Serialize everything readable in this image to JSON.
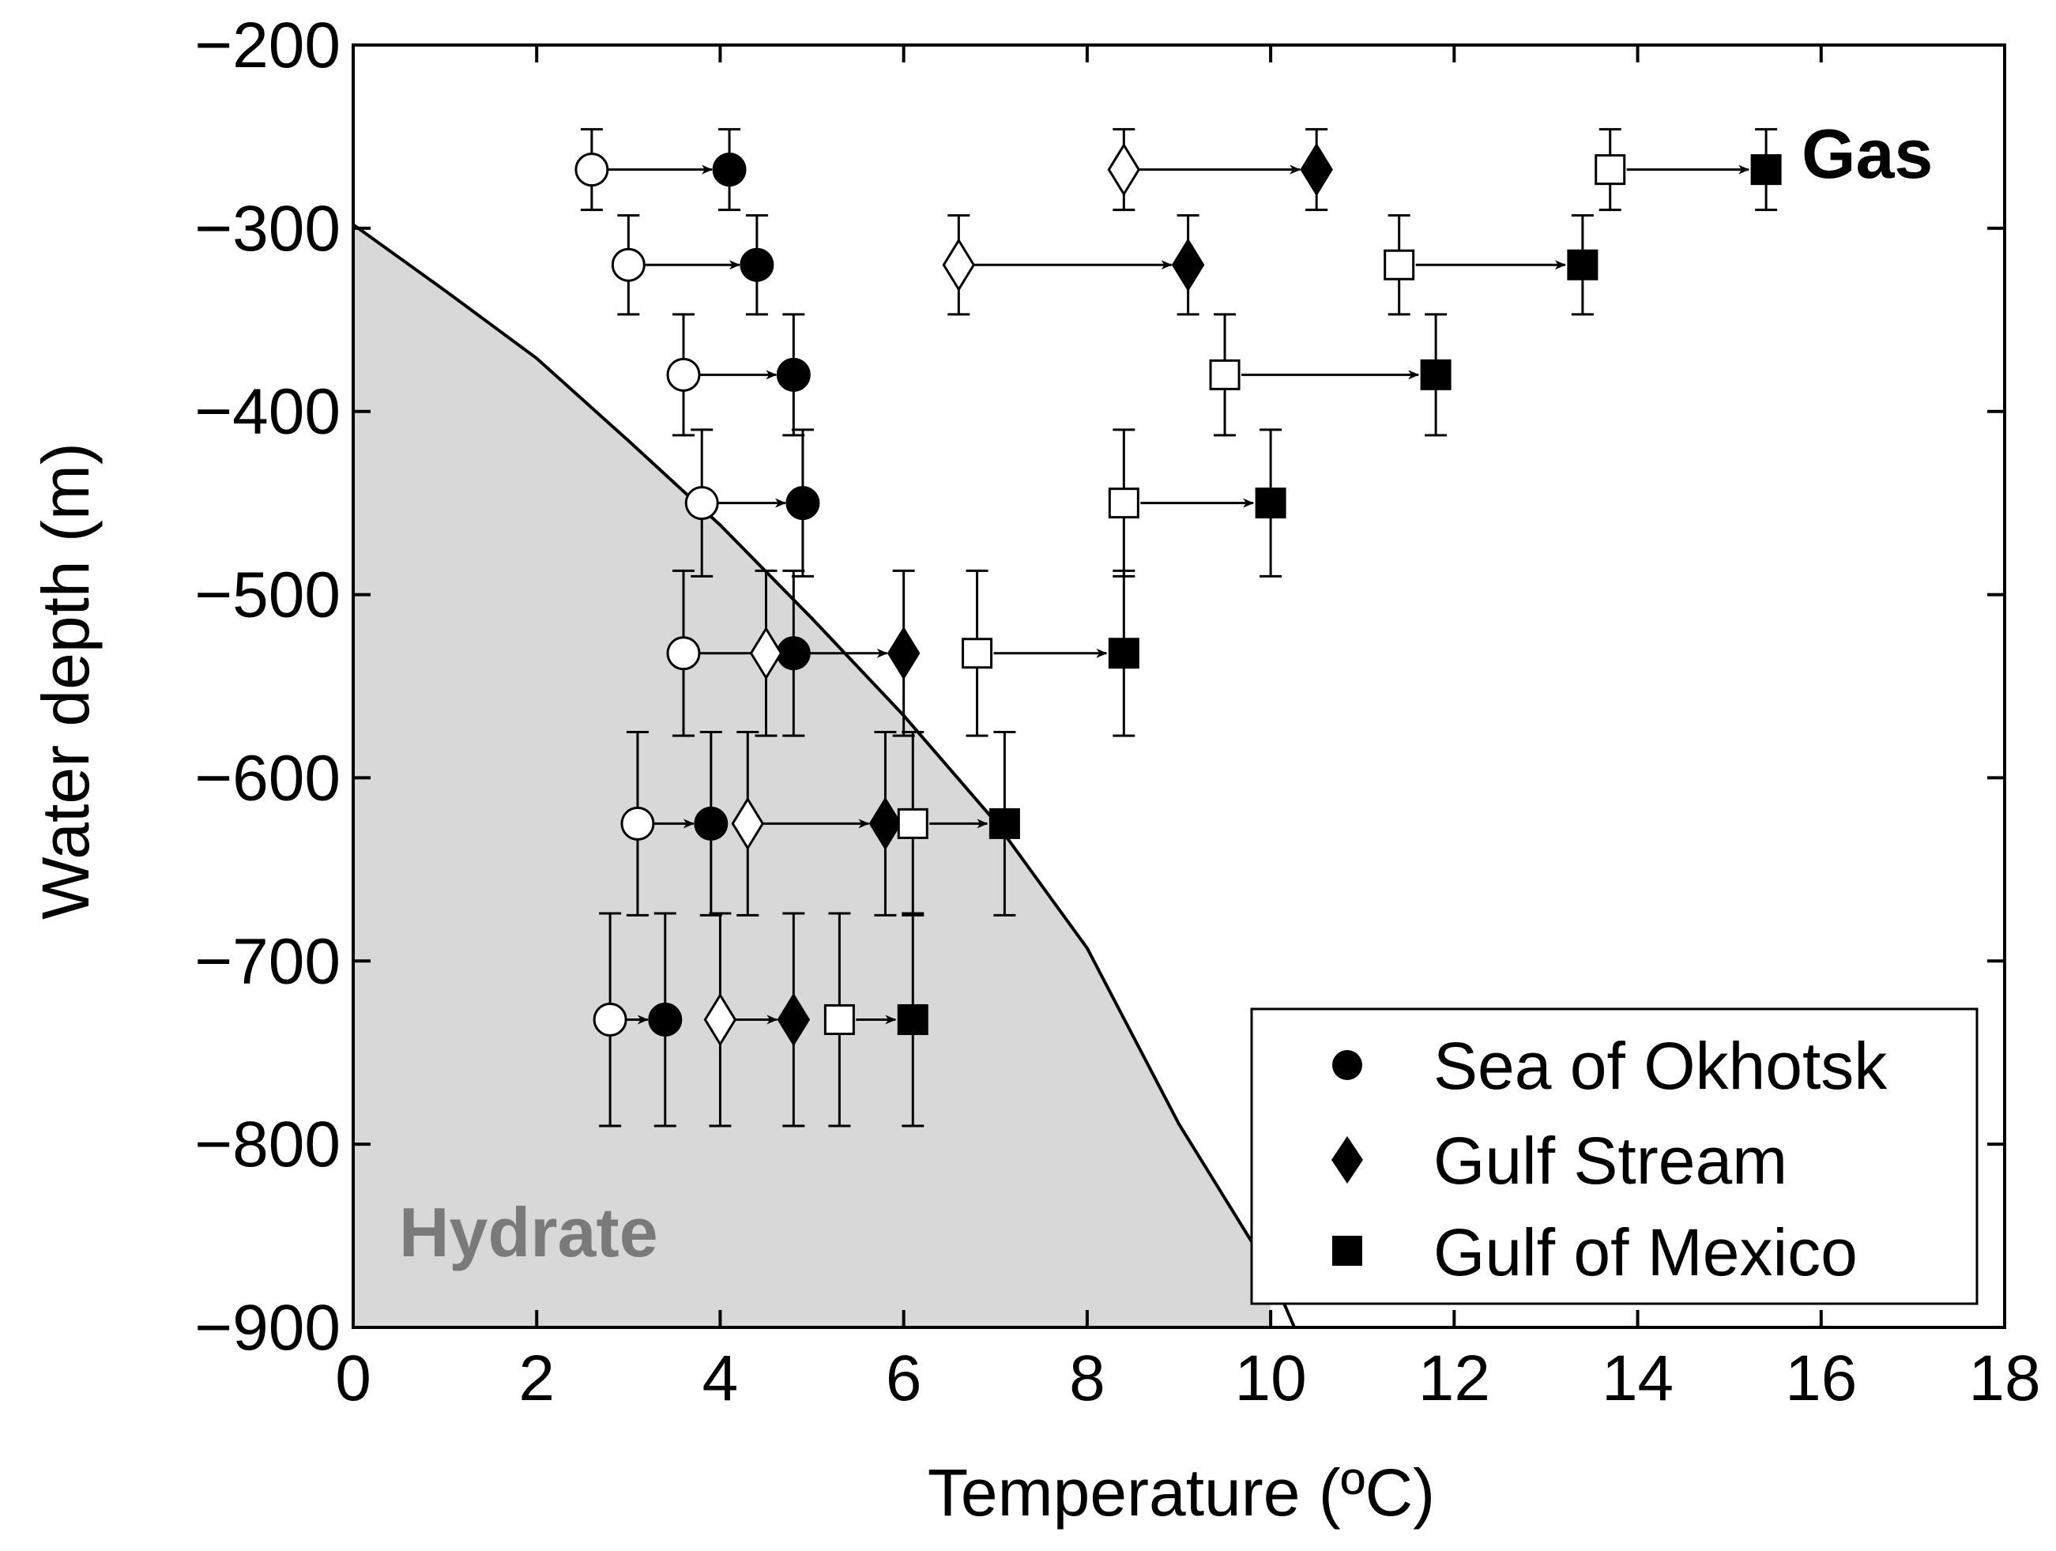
{
  "chart_data": {
    "type": "scatter",
    "title": "",
    "xlabel": "Temperature (ºC)",
    "ylabel": "Water depth (m)",
    "xlim": [
      0,
      18
    ],
    "ylim": [
      -900,
      -200
    ],
    "xticks": [
      0,
      2,
      4,
      6,
      8,
      10,
      12,
      14,
      16,
      18
    ],
    "yticks": [
      -200,
      -300,
      -400,
      -500,
      -600,
      -700,
      -800,
      -900
    ],
    "xtick_labels": [
      "0",
      "2",
      "4",
      "6",
      "8",
      "10",
      "12",
      "14",
      "16",
      "18"
    ],
    "ytick_labels": [
      "−200",
      "−300",
      "−400",
      "−500",
      "−600",
      "−700",
      "−800",
      "−900"
    ],
    "region_labels": {
      "gas": "Gas",
      "hydrate": "Hydrate"
    },
    "stability_boundary": {
      "x": [
        0,
        1,
        2,
        3,
        4,
        5,
        6,
        7,
        8,
        9,
        10
      ],
      "y": [
        -298,
        -334,
        -371,
        -416,
        -462,
        -513,
        -566,
        -624,
        -693,
        -789,
        -870
      ]
    },
    "legend": {
      "position": "bottom-right",
      "entries": [
        {
          "label": "Sea of Okhotsk",
          "marker": "circle"
        },
        {
          "label": "Gulf Stream",
          "marker": "diamond"
        },
        {
          "label": "Gulf of Mexico",
          "marker": "square"
        }
      ]
    },
    "series": [
      {
        "name": "Sea of Okhotsk",
        "marker": "circle",
        "points": [
          {
            "depth": -268,
            "t_from": 2.6,
            "t_to": 4.1,
            "err": 22
          },
          {
            "depth": -320,
            "t_from": 3.0,
            "t_to": 4.4,
            "err": 27
          },
          {
            "depth": -380,
            "t_from": 3.6,
            "t_to": 4.8,
            "err": 33
          },
          {
            "depth": -450,
            "t_from": 3.8,
            "t_to": 4.9,
            "err": 40
          },
          {
            "depth": -532,
            "t_from": 3.6,
            "t_to": 4.8,
            "err": 45
          },
          {
            "depth": -625,
            "t_from": 3.1,
            "t_to": 3.9,
            "err": 50
          },
          {
            "depth": -732,
            "t_from": 2.8,
            "t_to": 3.4,
            "err": 58
          }
        ]
      },
      {
        "name": "Gulf Stream",
        "marker": "diamond",
        "points": [
          {
            "depth": -268,
            "t_from": 8.4,
            "t_to": 10.5,
            "err": 22
          },
          {
            "depth": -320,
            "t_from": 6.6,
            "t_to": 9.1,
            "err": 27
          },
          {
            "depth": -532,
            "t_from": 4.5,
            "t_to": 6.0,
            "err": 45
          },
          {
            "depth": -625,
            "t_from": 4.3,
            "t_to": 5.8,
            "err": 50
          },
          {
            "depth": -732,
            "t_from": 4.0,
            "t_to": 4.8,
            "err": 58
          }
        ]
      },
      {
        "name": "Gulf of Mexico",
        "marker": "square",
        "points": [
          {
            "depth": -268,
            "t_from": 13.7,
            "t_to": 15.4,
            "err": 22
          },
          {
            "depth": -320,
            "t_from": 11.4,
            "t_to": 13.4,
            "err": 27
          },
          {
            "depth": -380,
            "t_from": 9.5,
            "t_to": 11.8,
            "err": 33
          },
          {
            "depth": -450,
            "t_from": 8.4,
            "t_to": 10.0,
            "err": 40
          },
          {
            "depth": -532,
            "t_from": 6.8,
            "t_to": 8.4,
            "err": 45
          },
          {
            "depth": -625,
            "t_from": 6.1,
            "t_to": 7.1,
            "err": 50
          },
          {
            "depth": -732,
            "t_from": 5.3,
            "t_to": 6.1,
            "err": 58
          }
        ]
      }
    ]
  }
}
